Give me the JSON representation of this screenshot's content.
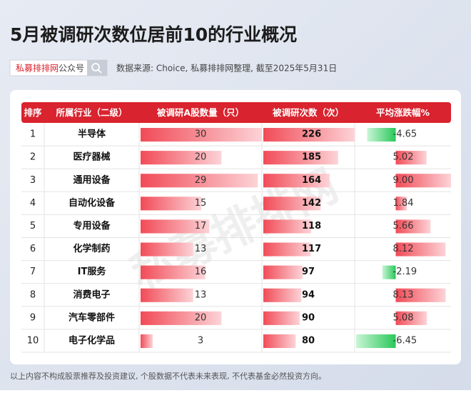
{
  "header": {
    "title": "5月被调研次数位居前10的行业概况",
    "brand": "私募排排网",
    "brand_suffix": "公众号",
    "source": "数据来源: Choice, 私募排排网整理, 截至2025年5月31日"
  },
  "table": {
    "columns": [
      "排序",
      "所属行业（二级）",
      "被调研A股数量（只）",
      "被调研次数（次）",
      "平均涨跌幅%"
    ],
    "rows": [
      [
        1,
        "半导体",
        30,
        226,
        "-4.65"
      ],
      [
        2,
        "医疗器械",
        20,
        185,
        "5.02"
      ],
      [
        3,
        "通用设备",
        29,
        164,
        "9.00"
      ],
      [
        4,
        "自动化设备",
        15,
        142,
        "1.84"
      ],
      [
        5,
        "专用设备",
        17,
        118,
        "5.66"
      ],
      [
        6,
        "化学制药",
        13,
        117,
        "8.12"
      ],
      [
        7,
        "IT服务",
        16,
        97,
        "-2.19"
      ],
      [
        8,
        "消费电子",
        13,
        94,
        "8.13"
      ],
      [
        9,
        "汽车零部件",
        20,
        90,
        "5.08"
      ],
      [
        10,
        "电子化学品",
        3,
        80,
        "-6.45"
      ]
    ]
  },
  "watermark": "私募排排网",
  "footer": "以上内容不构成股票推荐及投资建议, 个股数据不代表未来表现, 不代表基金必然投资方向。"
}
